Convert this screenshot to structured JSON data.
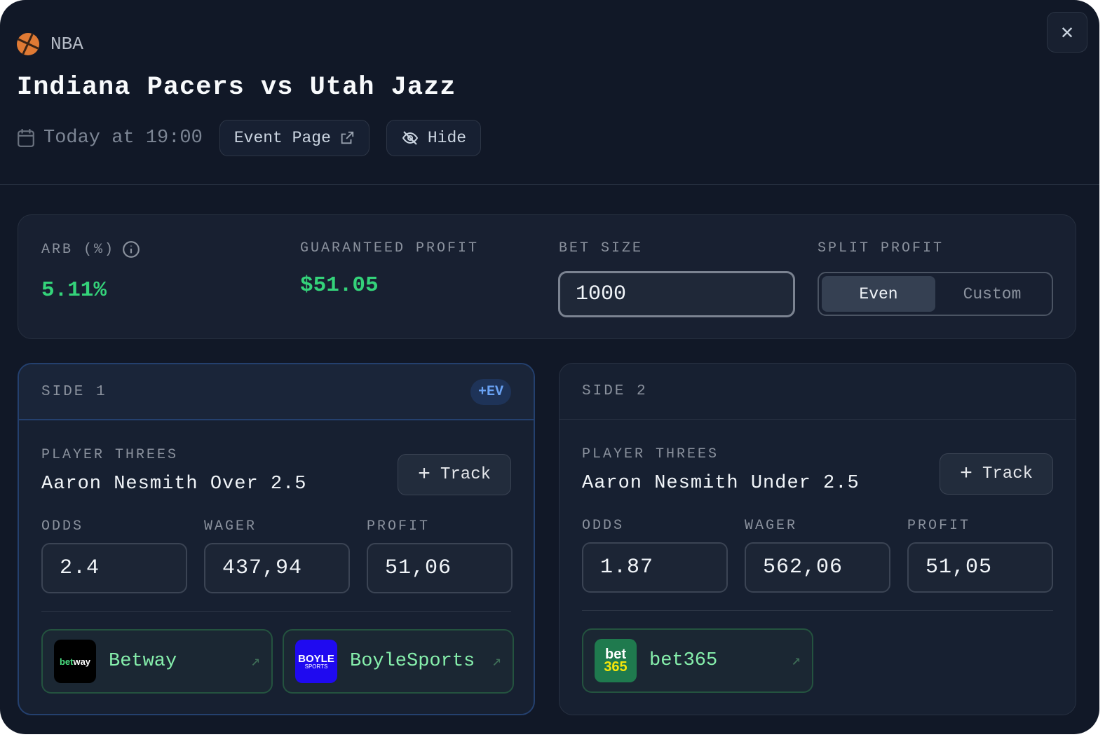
{
  "header": {
    "league": "NBA",
    "league_icon": "basketball-icon",
    "title": "Indiana Pacers vs Utah Jazz",
    "time": "Today at 19:00",
    "event_page": "Event Page",
    "hide": "Hide"
  },
  "stats": {
    "arb_label": "ARB (%)",
    "arb_value": "5.11%",
    "profit_label": "GUARANTEED PROFIT",
    "profit_value": "$51.05",
    "bet_size_label": "BET SIZE",
    "bet_size": "1000",
    "split_label": "SPLIT PROFIT",
    "split_options": [
      "Even",
      "Custom"
    ],
    "split_selected": "Even"
  },
  "colors": {
    "background": "#111827",
    "positive": "#34d37a",
    "ev_badge": "#6aa3f5",
    "bookmaker_text": "#86efac"
  },
  "sides": [
    {
      "title": "SIDE 1",
      "badge": "+EV",
      "market": "PLAYER THREES",
      "selection": "Aaron Nesmith Over 2.5",
      "track": "Track",
      "odds_label": "ODDS",
      "wager_label": "WAGER",
      "profit_label": "PROFIT",
      "odds": "2.4",
      "wager": "437,94",
      "profit": "51,06",
      "books": [
        {
          "name": "Betway",
          "logo": "betway"
        },
        {
          "name": "BoyleSports",
          "logo": "BOYLE SPORTS"
        }
      ]
    },
    {
      "title": "SIDE 2",
      "market": "PLAYER THREES",
      "selection": "Aaron Nesmith Under 2.5",
      "track": "Track",
      "odds_label": "ODDS",
      "wager_label": "WAGER",
      "profit_label": "PROFIT",
      "odds": "1.87",
      "wager": "562,06",
      "profit": "51,05",
      "books": [
        {
          "name": "bet365",
          "logo": "bet 365"
        }
      ]
    }
  ]
}
